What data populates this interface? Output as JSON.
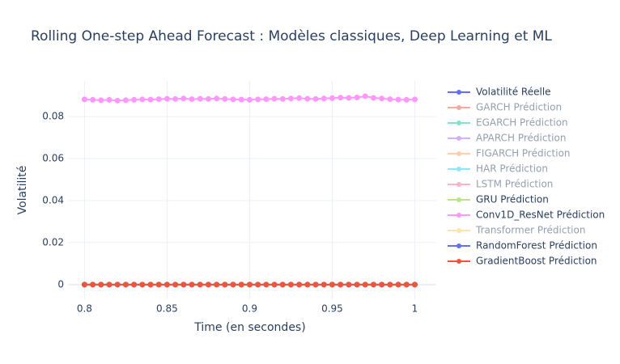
{
  "chart_data": {
    "type": "line",
    "title": "Rolling One-step Ahead Forecast : Modèles classiques, Deep Learning et ML",
    "x_label": "Time (en secondes)",
    "y_label": "Volatilité",
    "xlim": [
      0.79,
      1.013
    ],
    "ylim": [
      -0.007,
      0.097
    ],
    "xticks": [
      0.8,
      0.85,
      0.9,
      0.95,
      1
    ],
    "yticks": [
      0,
      0.02,
      0.04,
      0.06,
      0.08
    ],
    "grid": true,
    "legend": "right",
    "x": [
      0.8,
      0.805,
      0.81,
      0.815,
      0.82,
      0.825,
      0.83,
      0.835,
      0.84,
      0.845,
      0.85,
      0.855,
      0.86,
      0.865,
      0.87,
      0.875,
      0.88,
      0.885,
      0.89,
      0.895,
      0.9,
      0.905,
      0.91,
      0.915,
      0.92,
      0.925,
      0.93,
      0.935,
      0.94,
      0.945,
      0.95,
      0.955,
      0.96,
      0.965,
      0.97,
      0.975,
      0.98,
      0.985,
      0.99,
      0.995,
      1.0
    ],
    "series": [
      {
        "name": "Volatilité Réelle",
        "color": "#636efa",
        "values": [
          0,
          0,
          0,
          0,
          0,
          0,
          0,
          0,
          0,
          0,
          0,
          0,
          0,
          0,
          0,
          0,
          0,
          0,
          0,
          0,
          0,
          0,
          0,
          0,
          0,
          0,
          0,
          0,
          0,
          0,
          0,
          0,
          0,
          0,
          0,
          0,
          0,
          0,
          0,
          0,
          0
        ]
      },
      {
        "name": "GARCH Prédiction",
        "color": "#EF553B",
        "legendonly": true
      },
      {
        "name": "EGARCH Prédiction",
        "color": "#00cc96",
        "legendonly": true
      },
      {
        "name": "APARCH Prédiction",
        "color": "#ab63fa",
        "legendonly": true
      },
      {
        "name": "FIGARCH Prédiction",
        "color": "#FFA15A",
        "legendonly": true
      },
      {
        "name": "HAR Prédiction",
        "color": "#19d3f3",
        "legendonly": true
      },
      {
        "name": "LSTM Prédiction",
        "color": "#FF6692",
        "legendonly": true
      },
      {
        "name": "GRU Prédiction",
        "color": "#B6E880",
        "values": [
          0,
          0,
          0,
          0,
          0,
          0,
          0,
          0,
          0,
          0,
          0,
          0,
          0,
          0,
          0,
          0,
          0,
          0,
          0,
          0,
          0,
          0,
          0,
          0,
          0,
          0,
          0,
          0,
          0,
          0,
          0,
          0,
          0,
          0,
          0,
          0,
          0,
          0,
          0,
          0,
          0
        ]
      },
      {
        "name": "Conv1D_ResNet Prédiction",
        "color": "#FF97FF",
        "values": [
          0.0882,
          0.088,
          0.0878,
          0.088,
          0.0876,
          0.0878,
          0.088,
          0.0882,
          0.0881,
          0.0883,
          0.0885,
          0.0884,
          0.0886,
          0.0883,
          0.0885,
          0.0884,
          0.0886,
          0.0884,
          0.0882,
          0.0881,
          0.088,
          0.0882,
          0.0883,
          0.0885,
          0.0884,
          0.0886,
          0.0888,
          0.0885,
          0.0884,
          0.0886,
          0.0888,
          0.089,
          0.0889,
          0.0891,
          0.0897,
          0.0889,
          0.0886,
          0.0883,
          0.0881,
          0.088,
          0.0882
        ]
      },
      {
        "name": "Transformer Prédiction",
        "color": "#FECB52",
        "legendonly": true
      },
      {
        "name": "RandomForest Prédiction",
        "color": "#636efa",
        "values": [
          0,
          0,
          0,
          0,
          0,
          0,
          0,
          0,
          0,
          0,
          0,
          0,
          0,
          0,
          0,
          0,
          0,
          0,
          0,
          0,
          0,
          0,
          0,
          0,
          0,
          0,
          0,
          0,
          0,
          0,
          0,
          0,
          0,
          0,
          0,
          0,
          0,
          0,
          0,
          0,
          0
        ]
      },
      {
        "name": "GradientBoost Prédiction",
        "color": "#EF553B",
        "values": [
          0,
          0,
          0,
          0,
          0,
          0,
          0,
          0,
          0,
          0,
          0,
          0,
          0,
          0,
          0,
          0,
          0,
          0,
          0,
          0,
          0,
          0,
          0,
          0,
          0,
          0,
          0,
          0,
          0,
          0,
          0,
          0,
          0,
          0,
          0,
          0,
          0,
          0,
          0,
          0,
          0
        ]
      }
    ]
  }
}
